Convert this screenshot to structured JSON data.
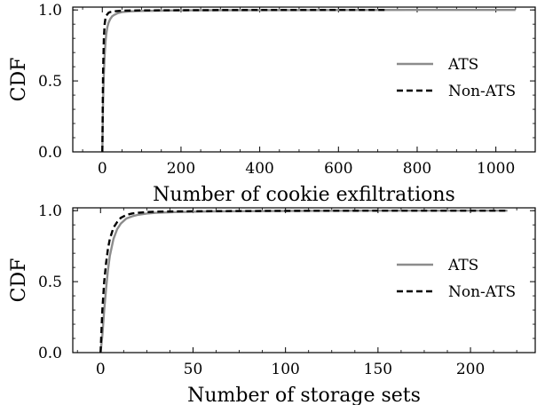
{
  "chart_data": [
    {
      "type": "line",
      "xlabel": "Number of cookie exfiltrations",
      "ylabel": "CDF",
      "xlim": [
        -75,
        1100
      ],
      "ylim": [
        0,
        1.02
      ],
      "xticks": [
        0,
        200,
        400,
        600,
        800,
        1000
      ],
      "yticks": [
        0.0,
        0.5,
        1.0
      ],
      "xtick_labels": [
        "0",
        "200",
        "400",
        "600",
        "800",
        "1000"
      ],
      "ytick_labels": [
        "0.0",
        "0.5",
        "1.0"
      ],
      "legend_position": "center-right",
      "grid": false,
      "series": [
        {
          "name": "ATS",
          "color": "#8c8c8c",
          "style": "solid",
          "x": [
            0,
            2,
            4,
            6,
            8,
            10,
            13,
            16,
            20,
            25,
            30,
            40,
            50,
            70,
            100,
            150,
            200,
            300,
            500,
            800,
            1050
          ],
          "y": [
            0.0,
            0.35,
            0.55,
            0.68,
            0.77,
            0.83,
            0.88,
            0.91,
            0.935,
            0.955,
            0.965,
            0.978,
            0.985,
            0.99,
            0.993,
            0.995,
            0.997,
            0.998,
            0.999,
            1.0,
            1.0
          ]
        },
        {
          "name": "Non-ATS",
          "color": "#000000",
          "style": "dashed",
          "x": [
            0,
            2,
            4,
            6,
            8,
            10,
            13,
            16,
            20,
            30,
            50,
            100,
            200,
            400,
            720
          ],
          "y": [
            0.0,
            0.55,
            0.8,
            0.9,
            0.94,
            0.96,
            0.97,
            0.98,
            0.985,
            0.99,
            0.995,
            0.997,
            0.998,
            1.0,
            1.0
          ]
        }
      ]
    },
    {
      "type": "line",
      "xlabel": "Number of storage sets",
      "ylabel": "CDF",
      "xlim": [
        -15,
        235
      ],
      "ylim": [
        0,
        1.02
      ],
      "xticks": [
        0,
        50,
        100,
        150,
        200
      ],
      "yticks": [
        0.0,
        0.5,
        1.0
      ],
      "xtick_labels": [
        "0",
        "50",
        "100",
        "150",
        "200"
      ],
      "ytick_labels": [
        "0.0",
        "0.5",
        "1.0"
      ],
      "legend_position": "center-right",
      "grid": false,
      "series": [
        {
          "name": "ATS",
          "color": "#8c8c8c",
          "style": "solid",
          "x": [
            0,
            1,
            2,
            3,
            4,
            5,
            7,
            9,
            11,
            14,
            17,
            20,
            25,
            30,
            40,
            60,
            100,
            150,
            220
          ],
          "y": [
            0.0,
            0.12,
            0.3,
            0.45,
            0.58,
            0.68,
            0.8,
            0.87,
            0.91,
            0.945,
            0.96,
            0.97,
            0.98,
            0.985,
            0.99,
            0.995,
            0.998,
            1.0,
            1.0
          ]
        },
        {
          "name": "Non-ATS",
          "color": "#000000",
          "style": "dashed",
          "x": [
            0,
            1,
            2,
            3,
            4,
            5,
            7,
            9,
            11,
            14,
            17,
            20,
            25,
            30,
            40,
            60,
            100,
            150,
            220
          ],
          "y": [
            0.0,
            0.3,
            0.5,
            0.63,
            0.73,
            0.8,
            0.88,
            0.92,
            0.95,
            0.97,
            0.98,
            0.985,
            0.99,
            0.993,
            0.995,
            0.997,
            0.999,
            1.0,
            1.0
          ]
        }
      ]
    }
  ]
}
